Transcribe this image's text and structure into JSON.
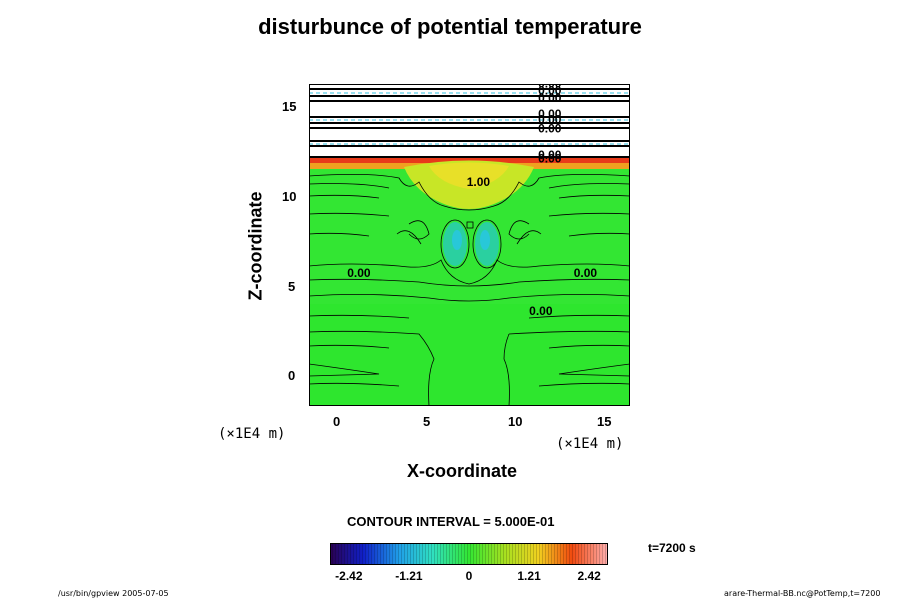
{
  "chart_data": {
    "type": "heatmap",
    "title": "disturbunce of potential temperature",
    "xlabel": "X-coordinate",
    "ylabel": "Z-coordinate",
    "x_unit": "(×1E4 m)",
    "z_unit": "(×1E4 m)",
    "xlim": [
      -1.5,
      16.5
    ],
    "ylim": [
      -1.5,
      16.5
    ],
    "x_ticks": [
      "0",
      "5",
      "10",
      "15"
    ],
    "y_ticks": [
      "0",
      "5",
      "10",
      "15"
    ],
    "contour_interval_label": "CONTOUR INTERVAL = 5.000E-01",
    "time_label": "t=7200 s",
    "colorbar": {
      "min": -2.8,
      "max": 2.8,
      "ticks": [
        "-2.42",
        "-1.21",
        "0",
        "1.21",
        "2.42"
      ],
      "tick_values": [
        -2.42,
        -1.21,
        0,
        1.21,
        2.42
      ]
    },
    "contour_labels": [
      {
        "text": "0.00",
        "x": 1.3,
        "z": 5.7
      },
      {
        "text": "0.00",
        "x": 14.0,
        "z": 5.7
      },
      {
        "text": "0.00",
        "x": 11.5,
        "z": 3.6
      },
      {
        "text": "1.00",
        "x": 8.0,
        "z": 10.8
      },
      {
        "text": "0.00",
        "x": 12.0,
        "z": 12.1
      },
      {
        "text": "0.00",
        "x": 12.0,
        "z": 12.3
      },
      {
        "text": "0.00",
        "x": 12.0,
        "z": 13.8
      },
      {
        "text": "0.00",
        "x": 12.0,
        "z": 14.3
      },
      {
        "text": "0.00",
        "x": 12.0,
        "z": 14.6
      },
      {
        "text": "0.00",
        "x": 12.0,
        "z": 15.5
      },
      {
        "text": "0.00",
        "x": 12.0,
        "z": 15.9
      },
      {
        "text": "0.00",
        "x": 12.0,
        "z": 16.3
      }
    ]
  },
  "footer": {
    "left": "/usr/bin/gpview 2005-07-05",
    "right": "arare-Thermal-BB.nc@PotTemp,t=7200"
  }
}
